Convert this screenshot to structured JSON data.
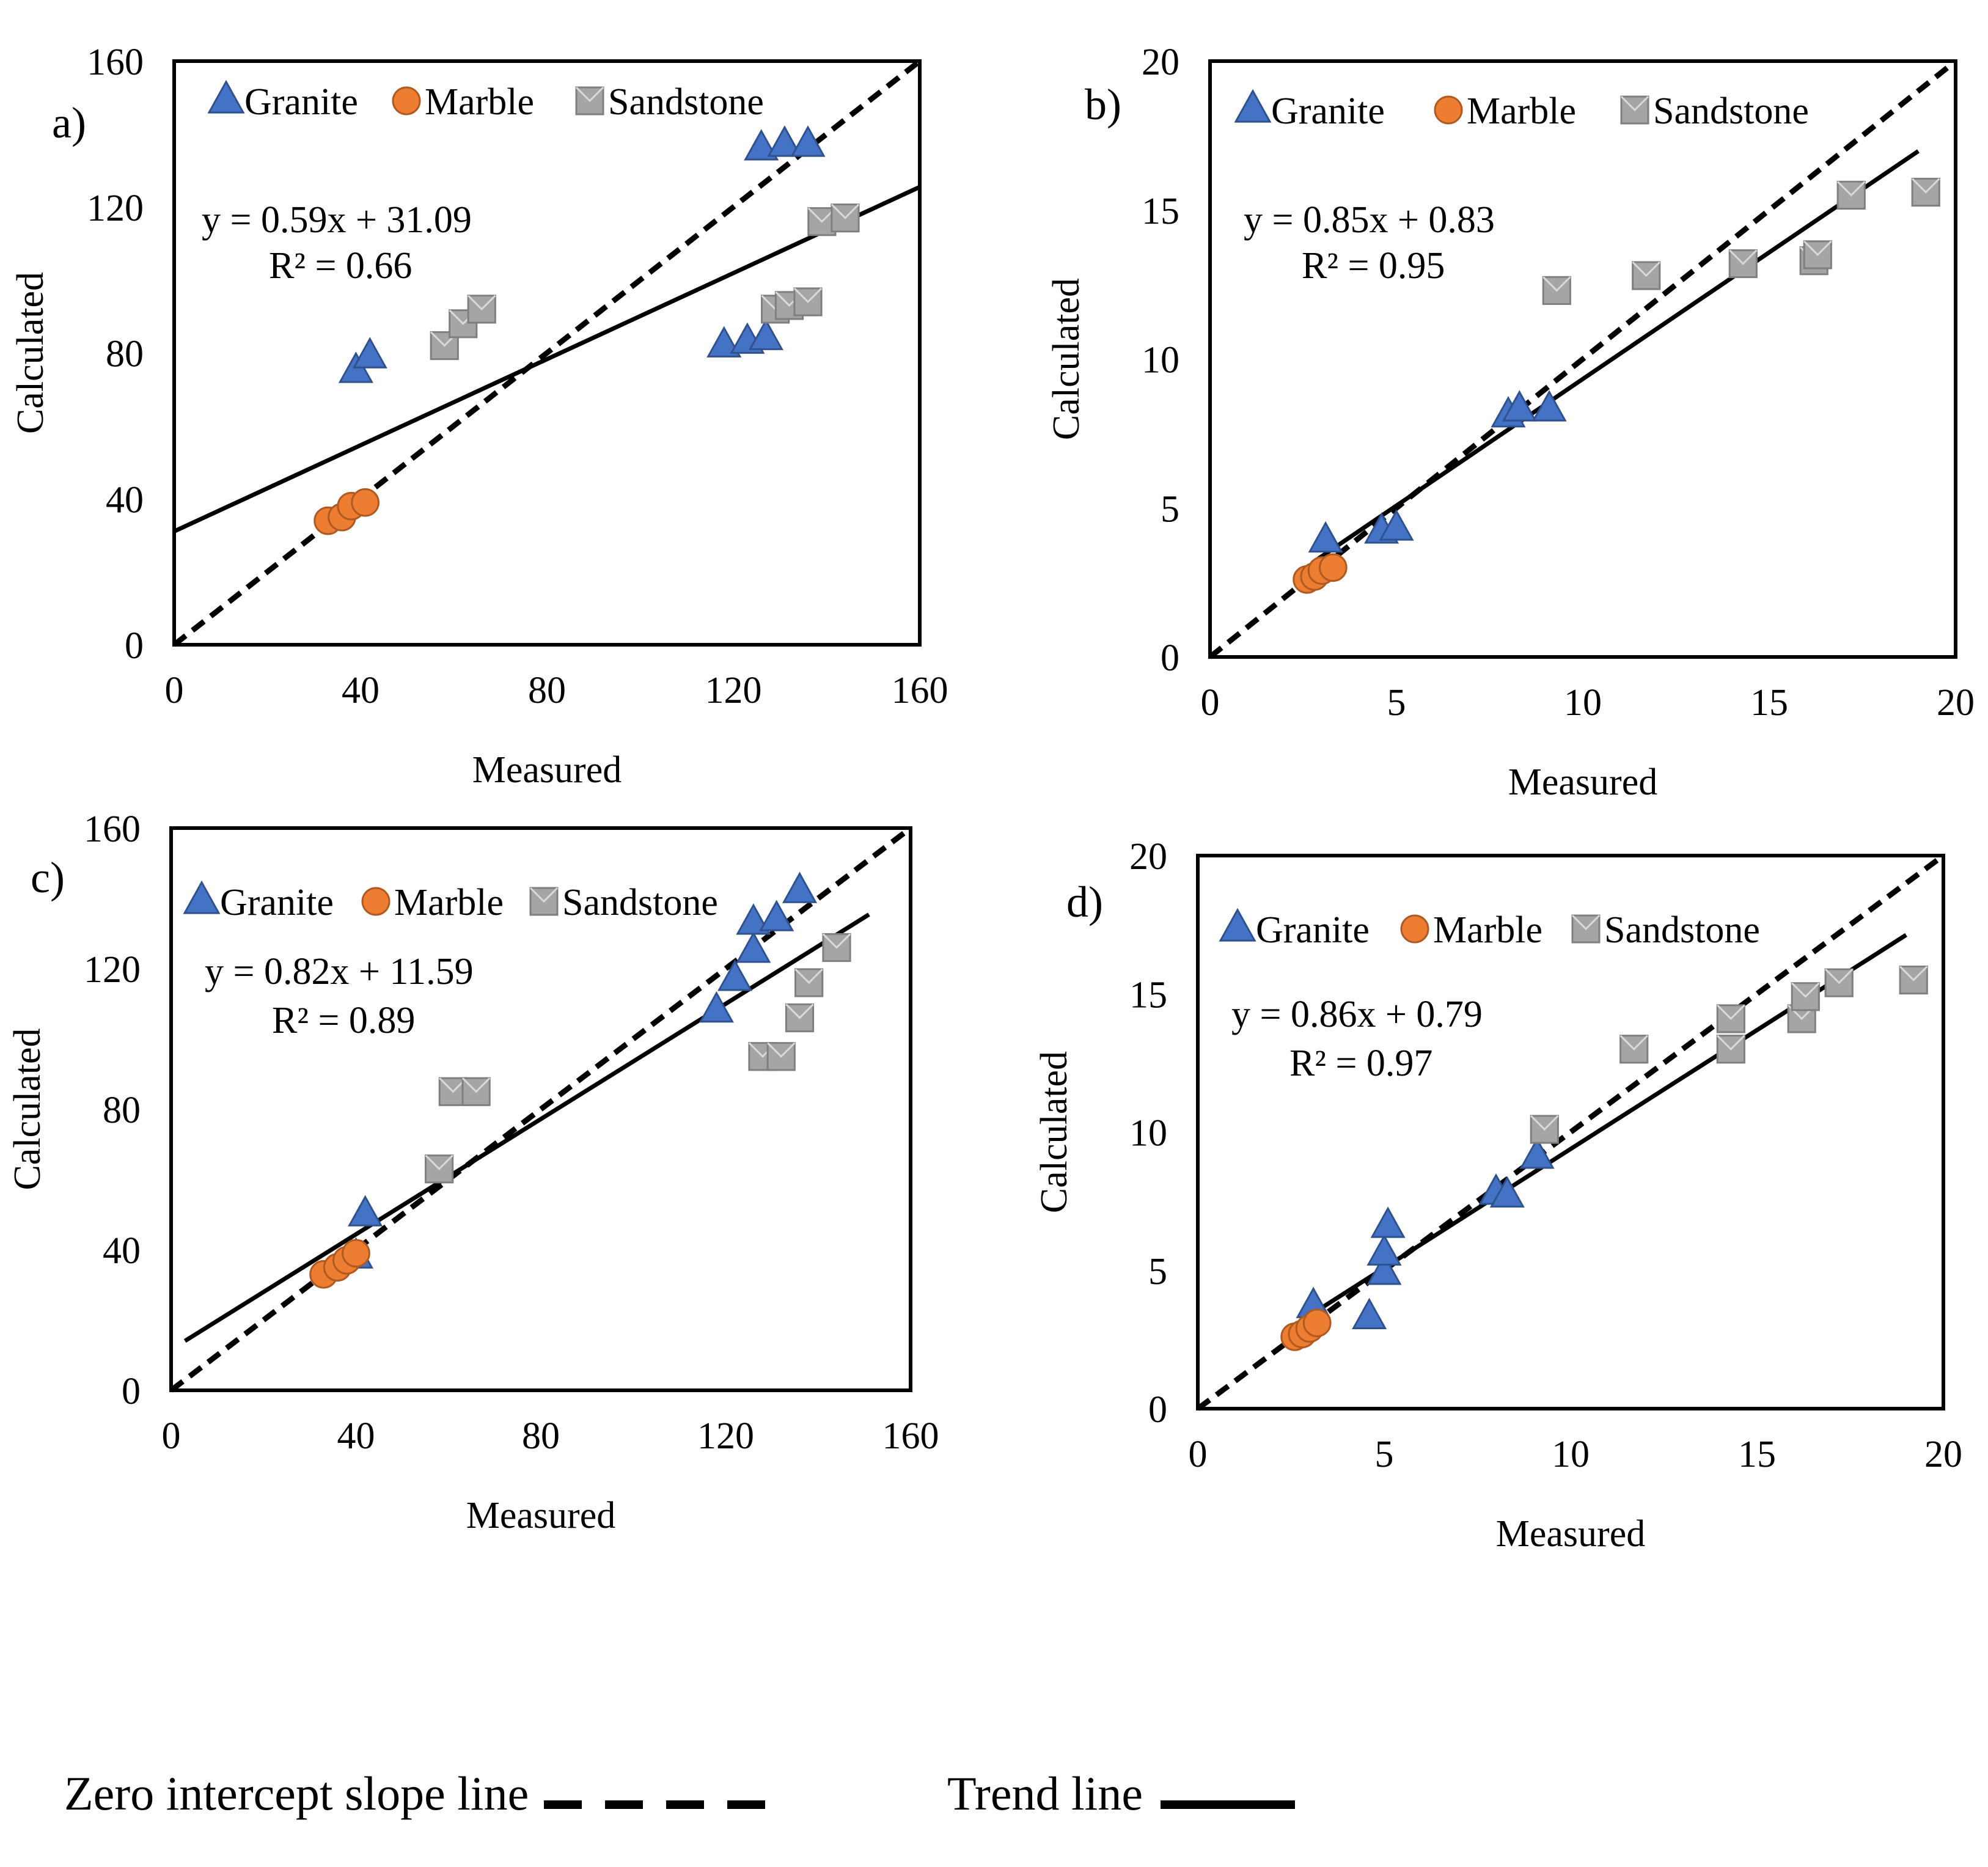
{
  "chart_data": [
    {
      "id": "a",
      "type": "scatter",
      "panel_label": "a)",
      "xlabel": "Measured",
      "ylabel": "Calculated",
      "xlim": [
        0,
        160
      ],
      "ylim": [
        0,
        160
      ],
      "ticks": [
        0,
        40,
        80,
        120,
        160
      ],
      "tick_labels": [
        "0",
        "40",
        "80",
        "120",
        "160"
      ],
      "legend": {
        "placement": "top-left",
        "entries": [
          "Granite",
          "Marble",
          "Sandstone"
        ]
      },
      "equation": "y = 0.59x + 31.09",
      "r2": "R² = 0.66",
      "trend": {
        "slope": 0.59,
        "intercept": 31.09,
        "x": [
          0,
          160
        ]
      },
      "identity": {
        "x": [
          0,
          160
        ]
      },
      "series": [
        {
          "name": "Granite",
          "points": [
            [
              39,
              75
            ],
            [
              42,
              79
            ],
            [
              118,
              82
            ],
            [
              123,
              83
            ],
            [
              127,
              84
            ],
            [
              126,
              136
            ],
            [
              131,
              137
            ],
            [
              136,
              137
            ]
          ]
        },
        {
          "name": "Marble",
          "points": [
            [
              33,
              34
            ],
            [
              36,
              35
            ],
            [
              38,
              38
            ],
            [
              41,
              39
            ]
          ]
        },
        {
          "name": "Sandstone",
          "points": [
            [
              58,
              82
            ],
            [
              62,
              88
            ],
            [
              66,
              92
            ],
            [
              129,
              92
            ],
            [
              132,
              93
            ],
            [
              136,
              94
            ],
            [
              139,
              116
            ],
            [
              144,
              117
            ]
          ]
        }
      ]
    },
    {
      "id": "b",
      "type": "scatter",
      "panel_label": "b)",
      "xlabel": "Measured",
      "ylabel": "Calculated",
      "xlim": [
        0,
        20
      ],
      "ylim": [
        0,
        20
      ],
      "ticks": [
        0,
        5,
        10,
        15,
        20
      ],
      "tick_labels": [
        "0",
        "5",
        "10",
        "15",
        "20"
      ],
      "legend": {
        "placement": "top-left",
        "entries": [
          "Granite",
          "Marble",
          "Sandstone"
        ]
      },
      "equation": "y = 0.85x + 0.83",
      "r2": "R² = 0.95",
      "trend": {
        "slope": 0.85,
        "intercept": 0.83,
        "x": [
          2.8,
          19
        ]
      },
      "identity": {
        "x": [
          0,
          20
        ]
      },
      "series": [
        {
          "name": "Granite",
          "points": [
            [
              3.1,
              3.9
            ],
            [
              4.6,
              4.2
            ],
            [
              5,
              4.3
            ],
            [
              8,
              8.1
            ],
            [
              8.3,
              8.3
            ],
            [
              9.1,
              8.3
            ]
          ]
        },
        {
          "name": "Marble",
          "points": [
            [
              2.6,
              2.6
            ],
            [
              2.8,
              2.7
            ],
            [
              3,
              2.9
            ],
            [
              3.3,
              3
            ]
          ]
        },
        {
          "name": "Sandstone",
          "points": [
            [
              9.3,
              12.3
            ],
            [
              11.7,
              12.8
            ],
            [
              14.3,
              13.2
            ],
            [
              16.2,
              13.3
            ],
            [
              16.3,
              13.5
            ],
            [
              17.2,
              15.5
            ],
            [
              19.2,
              15.6
            ]
          ]
        }
      ]
    },
    {
      "id": "c",
      "type": "scatter",
      "panel_label": "c)",
      "xlabel": "Measured",
      "ylabel": "Calculated",
      "xlim": [
        0,
        160
      ],
      "ylim": [
        0,
        160
      ],
      "ticks": [
        0,
        40,
        80,
        120,
        160
      ],
      "tick_labels": [
        "0",
        "40",
        "80",
        "120",
        "160"
      ],
      "legend": {
        "placement": "top-left",
        "entries": [
          "Granite",
          "Marble",
          "Sandstone"
        ]
      },
      "equation": "y = 0.82x + 11.59",
      "r2": "R² = 0.89",
      "trend": {
        "slope": 0.82,
        "intercept": 11.59,
        "x": [
          3,
          151
        ]
      },
      "identity": {
        "x": [
          0,
          160
        ]
      },
      "series": [
        {
          "name": "Granite",
          "points": [
            [
              40,
              38
            ],
            [
              42,
              50
            ],
            [
              118,
              108
            ],
            [
              122,
              117
            ],
            [
              126,
              125
            ],
            [
              126,
              133
            ],
            [
              131,
              134
            ],
            [
              136,
              142
            ]
          ]
        },
        {
          "name": "Marble",
          "points": [
            [
              33,
              33
            ],
            [
              36,
              35
            ],
            [
              38,
              37
            ],
            [
              40,
              39
            ]
          ]
        },
        {
          "name": "Sandstone",
          "points": [
            [
              58,
              63
            ],
            [
              61,
              85
            ],
            [
              66,
              85
            ],
            [
              128,
              95
            ],
            [
              132,
              95
            ],
            [
              136,
              106
            ],
            [
              138,
              116
            ],
            [
              144,
              126
            ]
          ]
        }
      ]
    },
    {
      "id": "d",
      "type": "scatter",
      "panel_label": "d)",
      "xlabel": "Measured",
      "ylabel": "Calculated",
      "xlim": [
        0,
        20
      ],
      "ylim": [
        0,
        20
      ],
      "ticks": [
        0,
        5,
        10,
        15,
        20
      ],
      "tick_labels": [
        "0",
        "5",
        "10",
        "15",
        "20"
      ],
      "legend": {
        "placement": "top-left",
        "entries": [
          "Granite",
          "Marble",
          "Sandstone"
        ]
      },
      "equation": "y = 0.86x + 0.79",
      "r2": "R² = 0.97",
      "trend": {
        "slope": 0.86,
        "intercept": 0.79,
        "x": [
          2.8,
          19
        ]
      },
      "identity": {
        "x": [
          0,
          20
        ]
      },
      "series": [
        {
          "name": "Granite",
          "points": [
            [
              3.1,
              3.7
            ],
            [
              4.6,
              3.3
            ],
            [
              5,
              4.9
            ],
            [
              5,
              5.6
            ],
            [
              5.1,
              6.6
            ],
            [
              8,
              7.8
            ],
            [
              8.3,
              7.7
            ],
            [
              9.1,
              9.1
            ]
          ]
        },
        {
          "name": "Marble",
          "points": [
            [
              2.6,
              2.6
            ],
            [
              2.8,
              2.7
            ],
            [
              3,
              2.9
            ],
            [
              3.2,
              3.1
            ]
          ]
        },
        {
          "name": "Sandstone",
          "points": [
            [
              9.3,
              10.1
            ],
            [
              11.7,
              13
            ],
            [
              14.3,
              13
            ],
            [
              14.3,
              14.1
            ],
            [
              16.2,
              14.1
            ],
            [
              16.3,
              14.9
            ],
            [
              17.2,
              15.4
            ],
            [
              19.2,
              15.5
            ]
          ]
        }
      ]
    }
  ],
  "legend_bottom": {
    "zero_intercept_label": "Zero intercept slope line",
    "trend_label": "Trend line"
  },
  "colors": {
    "granite": "#4472C4",
    "granite_edge": "#2F528F",
    "marble": "#ED7D31",
    "marble_edge": "#AE5A21",
    "sandstone": "#A5A5A5",
    "sandstone_edge": "#7F7F7F",
    "line": "#000000"
  }
}
